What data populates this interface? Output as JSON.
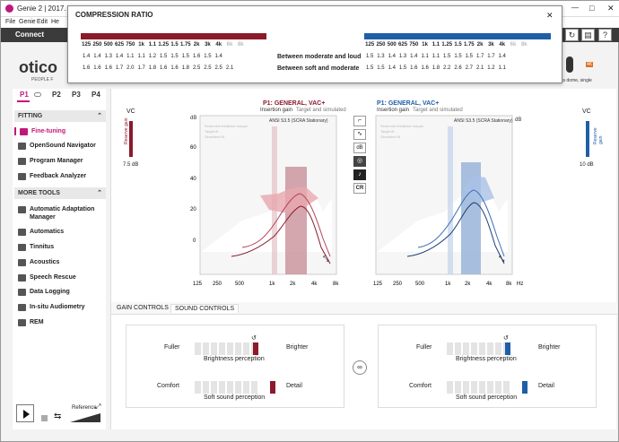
{
  "window": {
    "title": "Genie 2 | 2017.",
    "minimize": "—",
    "maximize": "□",
    "close": "✕"
  },
  "menu": [
    "File",
    "Genie",
    "Edit",
    "He"
  ],
  "connbar": {
    "connect_label": "Connect"
  },
  "brand": {
    "logo": "otico",
    "tagline": "PEOPLE F"
  },
  "device": {
    "badge": "4K",
    "label": "ss dome, single"
  },
  "dialog": {
    "title": "COMPRESSION RATIO",
    "close": "✕",
    "left_freqs": [
      "125",
      "250",
      "500",
      "625",
      "750",
      "1k",
      "1.1",
      "1.25",
      "1.5",
      "1.75",
      "2k",
      "3k",
      "4k",
      "6k",
      "8k"
    ],
    "left_row1": [
      "1.4",
      "1.4",
      "1.3",
      "1.4",
      "1.1",
      "1.1",
      "1.2",
      "1.5",
      "1.5",
      "1.5",
      "1.6",
      "1.5",
      "1.4",
      "",
      ""
    ],
    "left_row2": [
      "1.6",
      "1.6",
      "1.6",
      "1.7",
      "2.0",
      "1.7",
      "1.8",
      "1.6",
      "1.6",
      "1.8",
      "2.5",
      "2.5",
      "2.5",
      "2.1",
      ""
    ],
    "right_freqs": [
      "125",
      "250",
      "500",
      "625",
      "750",
      "1k",
      "1.1",
      "1.25",
      "1.5",
      "1.75",
      "2k",
      "3k",
      "4k",
      "6k",
      "8k"
    ],
    "right_row1": [
      "1.5",
      "1.3",
      "1.4",
      "1.3",
      "1.4",
      "1.1",
      "1.1",
      "1.5",
      "1.5",
      "1.5",
      "1.7",
      "1.7",
      "1.4",
      "",
      ""
    ],
    "right_row2": [
      "1.5",
      "1.5",
      "1.4",
      "1.5",
      "1.6",
      "1.6",
      "1.8",
      "2.2",
      "2.6",
      "2.7",
      "2.1",
      "1.2",
      "1.1",
      "",
      ""
    ],
    "row1_label": "Between moderate and loud",
    "row2_label": "Between soft and moderate",
    "left_color": "#8b1a2b",
    "right_color": "#1f5fa6"
  },
  "sidebar": {
    "programs": [
      "P1",
      "P2",
      "P3",
      "P4"
    ],
    "fitting_header": "FITTING",
    "fitting_items": [
      "Fine-tuning",
      "OpenSound Navigator",
      "Program Manager",
      "Feedback Analyzer"
    ],
    "more_header": "MORE TOOLS",
    "more_items": [
      "Automatic Adaptation Manager",
      "Automatics",
      "Tinnitus",
      "Acoustics",
      "Speech Rescue",
      "Data Logging",
      "In-situ Audiometry",
      "REM"
    ],
    "reference_label": "Reference"
  },
  "left_chart": {
    "title": "P1: GENERAL, VAC+",
    "subtitle_a": "Insertion gain",
    "subtitle_b": "Target and simulated",
    "standard": "ANSI S3.5 (SCRA Stationary)",
    "legend": [
      "Reserved feedback margin",
      "Target fit",
      "Simulated fit"
    ],
    "vc_label": "VC",
    "reserve_label": "Reserve gain",
    "reserve_value": "7.5 dB",
    "color": "#8b1a2b",
    "band_color": "#c9909a"
  },
  "right_chart": {
    "title": "P1: GENERAL, VAC+",
    "subtitle_a": "Insertion gain",
    "subtitle_b": "Target and simulated",
    "standard": "ANSI S3.5 (SCRA Stationary)",
    "legend": [
      "Reserved feedback margin",
      "Target fit",
      "Simulated fit"
    ],
    "vc_label": "VC",
    "reserve_label": "Reserve gain",
    "reserve_value": "10 dB",
    "color": "#1f3d73",
    "band_color": "#9fb8dc"
  },
  "axes": {
    "y_unit": "dB",
    "yticks": [
      "60",
      "40",
      "20",
      "0"
    ],
    "xticks": [
      "125",
      "250",
      "500",
      "1k",
      "2k",
      "4k",
      "8k"
    ],
    "x_unit": "Hz"
  },
  "chart_tools": [
    "graph-icon",
    "curve-icon",
    "dB",
    "target-icon",
    "music-icon",
    "CR"
  ],
  "controls": {
    "tabs": [
      "GAIN CONTROLS",
      "SOUND CONTROLS"
    ],
    "fuller": "Fuller",
    "brighter": "Brighter",
    "brightness": "Brightness perception",
    "comfort": "Comfort",
    "detail": "Detail",
    "soft": "Soft sound perception",
    "left_brightness_level": 0.8,
    "left_soft_level": 1.0,
    "right_brightness_level": 0.8,
    "right_soft_level": 1.0,
    "left_color": "#8b1a2b",
    "right_color": "#1f5fa6"
  }
}
